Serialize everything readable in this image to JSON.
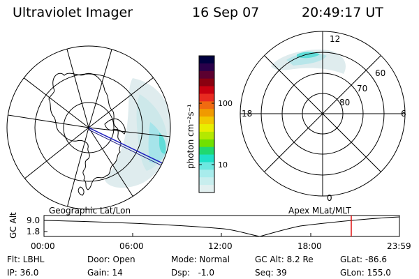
{
  "header": {
    "title": "Ultraviolet Imager",
    "date": "16 Sep 07",
    "time": "20:49:17 UT"
  },
  "panels": {
    "left_label": "Geographic Lat/Lon",
    "right_label": "Apex MLat/MLT"
  },
  "apex_grid": {
    "mlt_labels": [
      "12",
      "18",
      "6",
      "0"
    ],
    "mlat_labels": [
      "60",
      "70",
      "80"
    ]
  },
  "colorbar": {
    "unit_label": "photon cm⁻²s⁻¹",
    "tick_labels": [
      "100",
      "10"
    ],
    "colors": [
      "#00003f",
      "#2a004a",
      "#5c0030",
      "#8a0010",
      "#c80010",
      "#e82a20",
      "#f06a10",
      "#f09a00",
      "#f2c800",
      "#e8ee00",
      "#b4e800",
      "#70e000",
      "#20d870",
      "#1fe0c8",
      "#6ce8e0",
      "#a8ecec",
      "#c8eeee",
      "#e2f0f0"
    ]
  },
  "timeline": {
    "axis_label": "GC Alt",
    "y_ticks": [
      "9.0",
      "1.8"
    ],
    "x_ticks": [
      "00:00",
      "06:00",
      "12:00",
      "18:00",
      "23:59"
    ],
    "marker_color": "#e01010"
  },
  "info": {
    "filter": "Flt: LBHL",
    "door": "Door: Open",
    "mode": "Mode: Normal",
    "gc_alt": "GC Alt: 8.2 Re",
    "glat": "GLat: -86.6",
    "ip": "IP: 36.0",
    "gain": "Gain: 14",
    "dsp": "Dsp:   -1.0",
    "seq": "Seq: 39",
    "glon": "GLon: 155.0"
  }
}
